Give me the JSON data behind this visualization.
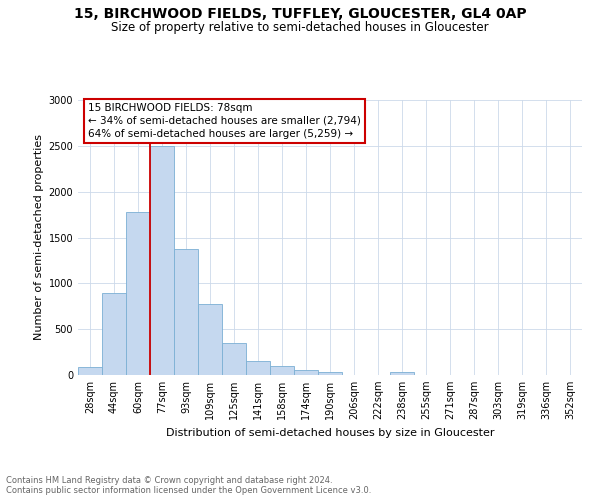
{
  "title1": "15, BIRCHWOOD FIELDS, TUFFLEY, GLOUCESTER, GL4 0AP",
  "title2": "Size of property relative to semi-detached houses in Gloucester",
  "xlabel": "Distribution of semi-detached houses by size in Gloucester",
  "ylabel": "Number of semi-detached properties",
  "bar_color": "#c5d8ef",
  "bar_edge_color": "#7bafd4",
  "bin_labels": [
    "28sqm",
    "44sqm",
    "60sqm",
    "77sqm",
    "93sqm",
    "109sqm",
    "125sqm",
    "141sqm",
    "158sqm",
    "174sqm",
    "190sqm",
    "206sqm",
    "222sqm",
    "238sqm",
    "255sqm",
    "271sqm",
    "287sqm",
    "303sqm",
    "319sqm",
    "336sqm",
    "352sqm"
  ],
  "bar_values": [
    90,
    900,
    1780,
    2500,
    1380,
    780,
    350,
    155,
    100,
    50,
    30,
    5,
    5,
    30,
    5,
    5,
    5,
    5,
    5,
    5,
    5
  ],
  "ylim": [
    0,
    3000
  ],
  "yticks": [
    0,
    500,
    1000,
    1500,
    2000,
    2500,
    3000
  ],
  "vline_index": 3,
  "vline_color": "#cc0000",
  "annotation_line1": "15 BIRCHWOOD FIELDS: 78sqm",
  "annotation_line2": "← 34% of semi-detached houses are smaller (2,794)",
  "annotation_line3": "64% of semi-detached houses are larger (5,259) →",
  "annotation_box_color": "#ffffff",
  "annotation_box_edge": "#cc0000",
  "footer_text": "Contains HM Land Registry data © Crown copyright and database right 2024.\nContains public sector information licensed under the Open Government Licence v3.0.",
  "bg_color": "#ffffff",
  "grid_color": "#ccd9ea",
  "title1_fontsize": 10,
  "title2_fontsize": 8.5,
  "tick_fontsize": 7,
  "ylabel_fontsize": 8,
  "xlabel_fontsize": 8,
  "annot_fontsize": 7.5,
  "footer_fontsize": 6
}
